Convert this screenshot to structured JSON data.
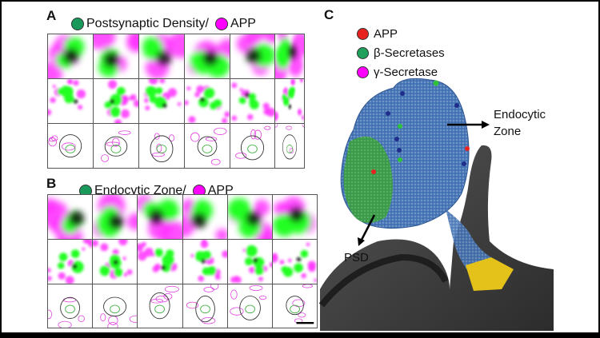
{
  "panel_a": {
    "label": "A",
    "legend": [
      {
        "text": "Postsynaptic Density/",
        "color": "#1a9a5a"
      },
      {
        "text": "APP",
        "color": "#ff00ff"
      }
    ]
  },
  "panel_b": {
    "label": "B",
    "legend": [
      {
        "text": "Endocytic Zone/",
        "color": "#1a9a5a"
      },
      {
        "text": "APP",
        "color": "#ff00ff"
      }
    ]
  },
  "panel_c": {
    "label": "C",
    "legend": [
      {
        "text": "APP",
        "color": "#e8231f"
      },
      {
        "text": "β-Secretases",
        "color": "#1fa15b"
      },
      {
        "text": "γ-Secretase",
        "color": "#ff00ff"
      }
    ],
    "annotations": {
      "endocytic_line1": "Endocytic",
      "endocytic_line2": "Zone",
      "psd": "PSD"
    }
  },
  "colors": {
    "green": "#00ff00",
    "magenta": "#ff00ff",
    "mesh_blue": "#3f6fb0",
    "neck_gray": "#3a3a3a",
    "yellow": "#e5c21a"
  }
}
